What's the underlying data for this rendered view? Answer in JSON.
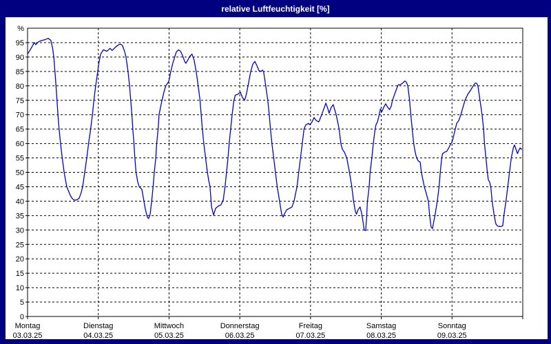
{
  "window": {
    "title": "relative Luftfeuchtigkeit [%]",
    "titlebar_color": "#000080",
    "background_color": "#ffffff"
  },
  "chart_data": {
    "type": "line",
    "title": "relative Luftfeuchtigkeit [%]",
    "ylabel": "",
    "xlabel": "",
    "y_unit_label": "%",
    "ylim": [
      0,
      100
    ],
    "y_tick_step": 5,
    "y_ticks": [
      0,
      5,
      10,
      15,
      20,
      25,
      30,
      35,
      40,
      45,
      50,
      55,
      60,
      65,
      70,
      75,
      80,
      85,
      90,
      95
    ],
    "x_range_hours": [
      0,
      168
    ],
    "grid": "dashed, horizontal every 5%, vertical at each midnight",
    "legend": "none",
    "line_color": "#0000C8",
    "days": [
      {
        "name": "Montag",
        "date": "03.03.25",
        "start_hour": 0
      },
      {
        "name": "Dienstag",
        "date": "04.03.25",
        "start_hour": 24
      },
      {
        "name": "Mittwoch",
        "date": "05.03.25",
        "start_hour": 48
      },
      {
        "name": "Donnerstag",
        "date": "06.03.25",
        "start_hour": 72
      },
      {
        "name": "Freitag",
        "date": "07.03.25",
        "start_hour": 96
      },
      {
        "name": "Samstag",
        "date": "08.03.25",
        "start_hour": 120
      },
      {
        "name": "Sonntag",
        "date": "09.03.25",
        "start_hour": 144
      }
    ],
    "series": [
      {
        "name": "relative Luftfeuchtigkeit",
        "points": [
          [
            0,
            91
          ],
          [
            1.2,
            93
          ],
          [
            2.3,
            95
          ],
          [
            2.8,
            94.3
          ],
          [
            3.7,
            95.3
          ],
          [
            4.7,
            95.7
          ],
          [
            5.8,
            96
          ],
          [
            7,
            96.5
          ],
          [
            7.9,
            95.8
          ],
          [
            8.5,
            93
          ],
          [
            8.9,
            90
          ],
          [
            9.3,
            85
          ],
          [
            9.8,
            78
          ],
          [
            10.3,
            70
          ],
          [
            10.7,
            65
          ],
          [
            11.2,
            60
          ],
          [
            11.7,
            55.5
          ],
          [
            12.4,
            50
          ],
          [
            13.3,
            45
          ],
          [
            14.5,
            42
          ],
          [
            15.2,
            40.8
          ],
          [
            16,
            40.3
          ],
          [
            16.8,
            40.5
          ],
          [
            17.5,
            41
          ],
          [
            18.2,
            43
          ],
          [
            18.7,
            45
          ],
          [
            19.4,
            50
          ],
          [
            20.1,
            55
          ],
          [
            20.7,
            60
          ],
          [
            21.4,
            65
          ],
          [
            22,
            70
          ],
          [
            22.5,
            75
          ],
          [
            23.1,
            80
          ],
          [
            23.8,
            85
          ],
          [
            24.2,
            88
          ],
          [
            24.8,
            91
          ],
          [
            25.7,
            92.5
          ],
          [
            26.9,
            92
          ],
          [
            28,
            93
          ],
          [
            28.7,
            92.3
          ],
          [
            29.9,
            93.5
          ],
          [
            30.8,
            94.2
          ],
          [
            31.5,
            94.5
          ],
          [
            32.2,
            94
          ],
          [
            32.9,
            92
          ],
          [
            33.4,
            90
          ],
          [
            34.1,
            85
          ],
          [
            34.6,
            80
          ],
          [
            35,
            75
          ],
          [
            35.4,
            70
          ],
          [
            35.7,
            65
          ],
          [
            36.1,
            60
          ],
          [
            36.4,
            55
          ],
          [
            36.8,
            50
          ],
          [
            37.4,
            46.5
          ],
          [
            37.9,
            45
          ],
          [
            38.8,
            44
          ],
          [
            39.4,
            40.5
          ],
          [
            40,
            37
          ],
          [
            40.7,
            34.3
          ],
          [
            41.1,
            34
          ],
          [
            41.6,
            35.5
          ],
          [
            42.1,
            40
          ],
          [
            42.6,
            45
          ],
          [
            43,
            50
          ],
          [
            43.5,
            55
          ],
          [
            43.8,
            60
          ],
          [
            44.3,
            65
          ],
          [
            44.6,
            70
          ],
          [
            45.1,
            72.5
          ],
          [
            45.6,
            75
          ],
          [
            46.3,
            78
          ],
          [
            46.9,
            80
          ],
          [
            47.9,
            81.5
          ],
          [
            48.6,
            85
          ],
          [
            49.3,
            88
          ],
          [
            49.9,
            90
          ],
          [
            50.5,
            91.8
          ],
          [
            51.2,
            92.5
          ],
          [
            51.9,
            92
          ],
          [
            52.6,
            90.5
          ],
          [
            53.3,
            88.5
          ],
          [
            53.7,
            87.8
          ],
          [
            54.4,
            89
          ],
          [
            55.1,
            90.3
          ],
          [
            55.8,
            91
          ],
          [
            56.5,
            89
          ],
          [
            57.2,
            85
          ],
          [
            57.9,
            80
          ],
          [
            58.5,
            75
          ],
          [
            58.9,
            70
          ],
          [
            59.3,
            65
          ],
          [
            59.8,
            60
          ],
          [
            60.4,
            55
          ],
          [
            61,
            50
          ],
          [
            61.5,
            47
          ],
          [
            61.9,
            45
          ],
          [
            62.4,
            38
          ],
          [
            63.1,
            35.2
          ],
          [
            63.8,
            37.5
          ],
          [
            64.7,
            38.3
          ],
          [
            65.6,
            38.7
          ],
          [
            66.4,
            40.5
          ],
          [
            67,
            45
          ],
          [
            67.5,
            50
          ],
          [
            68,
            55
          ],
          [
            68.4,
            60
          ],
          [
            68.9,
            65
          ],
          [
            69.4,
            70
          ],
          [
            70,
            75
          ],
          [
            70.5,
            76.8
          ],
          [
            71.2,
            77
          ],
          [
            72.2,
            77.8
          ],
          [
            72.9,
            76
          ],
          [
            73.6,
            75
          ],
          [
            74.1,
            76.5
          ],
          [
            74.8,
            80
          ],
          [
            75.7,
            85
          ],
          [
            76.4,
            87.5
          ],
          [
            77.1,
            88.5
          ],
          [
            77.8,
            87
          ],
          [
            78.5,
            85.3
          ],
          [
            79.2,
            85
          ],
          [
            79.7,
            85.5
          ],
          [
            80.1,
            84.8
          ],
          [
            80.8,
            80
          ],
          [
            81.5,
            75
          ],
          [
            82,
            70
          ],
          [
            82.4,
            65
          ],
          [
            82.9,
            60
          ],
          [
            83.5,
            55
          ],
          [
            84.1,
            50
          ],
          [
            84.7,
            45
          ],
          [
            85.5,
            40
          ],
          [
            86.2,
            35.5
          ],
          [
            86.7,
            34.5
          ],
          [
            87.1,
            35.5
          ],
          [
            87.9,
            37
          ],
          [
            88.8,
            37.5
          ],
          [
            89.7,
            38
          ],
          [
            90.4,
            40
          ],
          [
            91.4,
            45
          ],
          [
            92,
            50
          ],
          [
            92.6,
            55
          ],
          [
            93.2,
            60
          ],
          [
            93.8,
            65
          ],
          [
            94.4,
            66.5
          ],
          [
            95.3,
            67
          ],
          [
            95.8,
            66.5
          ],
          [
            96.5,
            67.5
          ],
          [
            97.2,
            69
          ],
          [
            97.9,
            68
          ],
          [
            98.8,
            67.5
          ],
          [
            99.8,
            70
          ],
          [
            100.5,
            72
          ],
          [
            101.2,
            74
          ],
          [
            101.9,
            72
          ],
          [
            102.3,
            70.5
          ],
          [
            103,
            72.5
          ],
          [
            103.7,
            73.5
          ],
          [
            104.7,
            70
          ],
          [
            105.7,
            65
          ],
          [
            106.3,
            60
          ],
          [
            106.8,
            58
          ],
          [
            107.5,
            57
          ],
          [
            107.9,
            56
          ],
          [
            108.3,
            55
          ],
          [
            109.2,
            50
          ],
          [
            110,
            45
          ],
          [
            110.6,
            40
          ],
          [
            111.2,
            36.5
          ],
          [
            111.6,
            35.5
          ],
          [
            112.1,
            37
          ],
          [
            112.8,
            38
          ],
          [
            113.3,
            36
          ],
          [
            113.8,
            33
          ],
          [
            114.2,
            30
          ],
          [
            114.7,
            29.8
          ],
          [
            115,
            34
          ],
          [
            115.3,
            40
          ],
          [
            115.9,
            45
          ],
          [
            116.2,
            50
          ],
          [
            116.8,
            55
          ],
          [
            117.3,
            60
          ],
          [
            117.9,
            65
          ],
          [
            118.2,
            66.5
          ],
          [
            118.7,
            67.5
          ],
          [
            119.3,
            70
          ],
          [
            119.7,
            72
          ],
          [
            120.2,
            71
          ],
          [
            120.8,
            72.5
          ],
          [
            121.5,
            73.8
          ],
          [
            122.2,
            72.5
          ],
          [
            122.8,
            71.8
          ],
          [
            123.4,
            73
          ],
          [
            123.8,
            75
          ],
          [
            124.5,
            77
          ],
          [
            125.2,
            79
          ],
          [
            125.7,
            80.3
          ],
          [
            126.6,
            80.5
          ],
          [
            127.3,
            81
          ],
          [
            128,
            81.7
          ],
          [
            128.5,
            81.3
          ],
          [
            129,
            80
          ],
          [
            129.6,
            75
          ],
          [
            130,
            70
          ],
          [
            130.5,
            65
          ],
          [
            131,
            60
          ],
          [
            131.5,
            57
          ],
          [
            132,
            55
          ],
          [
            132.5,
            54
          ],
          [
            133.2,
            53.5
          ],
          [
            133.6,
            50
          ],
          [
            134.6,
            45
          ],
          [
            135.3,
            42.5
          ],
          [
            136,
            40
          ],
          [
            136.4,
            35
          ],
          [
            136.9,
            31
          ],
          [
            137.4,
            30.5
          ],
          [
            137.8,
            33
          ],
          [
            138.2,
            35
          ],
          [
            139,
            40
          ],
          [
            139.6,
            45
          ],
          [
            140,
            50
          ],
          [
            140.5,
            55
          ],
          [
            140.8,
            56.5
          ],
          [
            141.5,
            57
          ],
          [
            142.2,
            57.3
          ],
          [
            142.9,
            58.5
          ],
          [
            143.6,
            60
          ],
          [
            144,
            60.5
          ],
          [
            144.4,
            62
          ],
          [
            145.1,
            65
          ],
          [
            145.6,
            67
          ],
          [
            146.3,
            68
          ],
          [
            147,
            70
          ],
          [
            147.7,
            72.5
          ],
          [
            148.4,
            75
          ],
          [
            149.3,
            77
          ],
          [
            150.3,
            78.5
          ],
          [
            151.2,
            80
          ],
          [
            151.9,
            81
          ],
          [
            152.4,
            80.8
          ],
          [
            152.8,
            80
          ],
          [
            153.5,
            75
          ],
          [
            154.2,
            70
          ],
          [
            154.7,
            65
          ],
          [
            155,
            60
          ],
          [
            155.5,
            55
          ],
          [
            156,
            50
          ],
          [
            156.3,
            47.5
          ],
          [
            156.8,
            46.5
          ],
          [
            157.2,
            44.5
          ],
          [
            157.6,
            40
          ],
          [
            158.3,
            35
          ],
          [
            158.9,
            32
          ],
          [
            159.6,
            31.3
          ],
          [
            160.5,
            31.2
          ],
          [
            161.2,
            31.5
          ],
          [
            161.6,
            35
          ],
          [
            162.3,
            40
          ],
          [
            162.9,
            45
          ],
          [
            163.5,
            50
          ],
          [
            164.1,
            55
          ],
          [
            164.8,
            58.5
          ],
          [
            165.2,
            59.5
          ],
          [
            165.7,
            58
          ],
          [
            166.2,
            56.5
          ],
          [
            166.6,
            57.5
          ],
          [
            167.1,
            58.5
          ],
          [
            167.6,
            58
          ]
        ]
      }
    ]
  }
}
